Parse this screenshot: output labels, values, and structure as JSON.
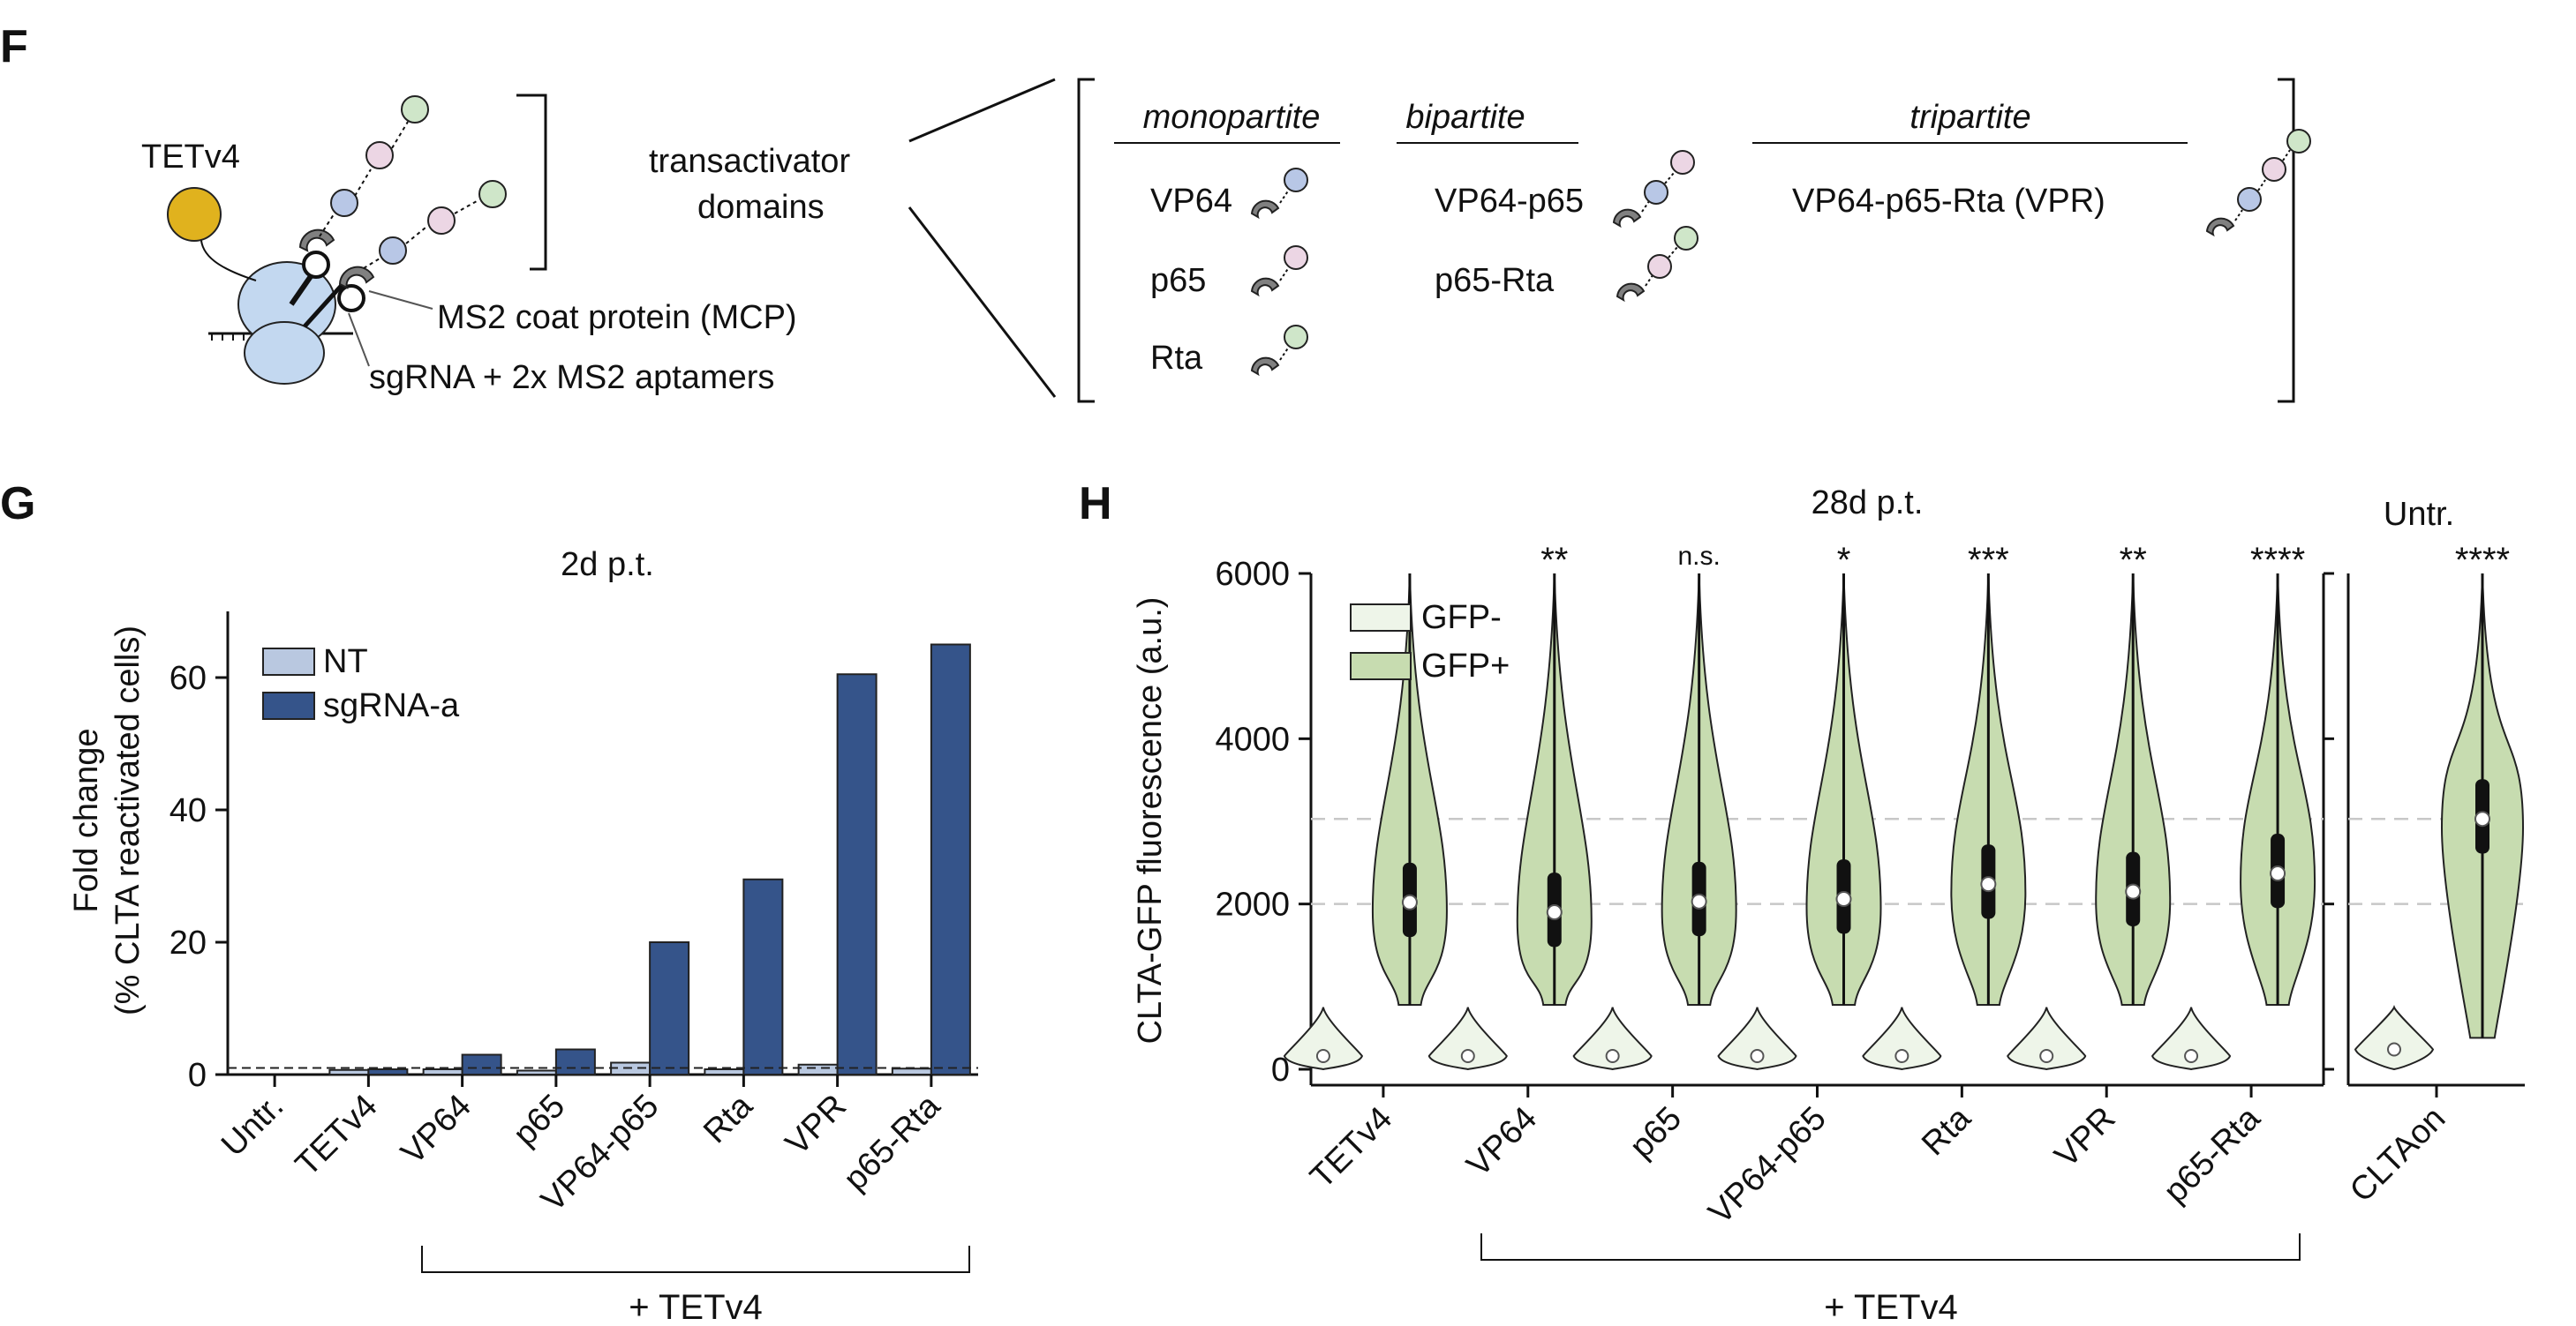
{
  "panelF": {
    "label": "F",
    "tetv4_label": "TETv4",
    "mcp_label": "MS2 coat protein (MCP)",
    "sgrna_label": "sgRNA + 2x MS2 aptamers",
    "transactivator_line1": "transactivator",
    "transactivator_line2": "domains",
    "groups": {
      "mono": {
        "title": "monopartite",
        "items": [
          "VP64",
          "p65",
          "Rta"
        ]
      },
      "bi": {
        "title": "bipartite",
        "items": [
          "VP64-p65",
          "p65-Rta"
        ]
      },
      "tri": {
        "title": "tripartite",
        "items": [
          "VP64-p65-Rta (VPR)"
        ]
      }
    },
    "colors": {
      "vp64": "#b8c7e6",
      "p65": "#ecd6e4",
      "rta": "#cfe6c9",
      "tetv4": "#e0b21e",
      "dcas9": "#c3d8f0",
      "mcp": "#808080"
    }
  },
  "panelG": {
    "label": "G",
    "title": "2d p.t.",
    "ylabel_line1": "Fold change",
    "ylabel_line2": "(% CLTA reactivated cells)",
    "bracket_label": "+ TETv4",
    "legend": [
      "NT",
      "sgRNA-a"
    ],
    "colors": {
      "nt": "#b9c8e0",
      "sgrna": "#35548a"
    }
  },
  "panelH": {
    "label": "H",
    "title": "28d p.t.",
    "untr_title": "Untr.",
    "ylabel": "CLTA-GFP fluorescence (a.u.)",
    "bracket_label": "+ TETv4",
    "legend": [
      "GFP-",
      "GFP+"
    ],
    "colors": {
      "gfp_neg": "#eef5e9",
      "gfp_pos": "#c7dcb0"
    }
  },
  "chart_data": [
    {
      "type": "bar",
      "title": "2d p.t.",
      "ylabel": "Fold change (% CLTA reactivated cells)",
      "categories": [
        "Untr.",
        "TETv4",
        "VP64",
        "p65",
        "VP64-p65",
        "Rta",
        "VPR",
        "p65-Rta"
      ],
      "series": [
        {
          "name": "NT",
          "values": [
            0,
            0.7,
            0.8,
            0.6,
            1.8,
            0.8,
            1.5,
            0.9
          ]
        },
        {
          "name": "sgRNA-a",
          "values": [
            0,
            0.8,
            3.0,
            3.8,
            20.0,
            29.5,
            60.5,
            65.0
          ]
        }
      ],
      "yticks": [
        0,
        20,
        40,
        60
      ],
      "ylim": [
        0,
        70
      ],
      "reference_line": 1,
      "legend": "top-left"
    },
    {
      "type": "violin",
      "title": "28d p.t.",
      "ylabel": "CLTA-GFP fluorescence (a.u.)",
      "categories": [
        "TETv4",
        "VP64",
        "p65",
        "VP64-p65",
        "Rta",
        "VPR",
        "p65-Rta"
      ],
      "series": [
        {
          "name": "GFP-",
          "medians": [
            160,
            160,
            160,
            160,
            160,
            160,
            160
          ]
        },
        {
          "name": "GFP+",
          "medians": [
            2020,
            1900,
            2030,
            2060,
            2240,
            2150,
            2370
          ]
        }
      ],
      "significance": [
        "",
        "**",
        "n.s.",
        "*",
        "***",
        "**",
        "****"
      ],
      "yticks": [
        0,
        2000,
        4000,
        6000
      ],
      "ylim": [
        0,
        6000
      ],
      "reference_lines": [
        2000,
        3030
      ],
      "legend": "top-left"
    },
    {
      "type": "violin",
      "title": "Untr.",
      "categories": [
        "CLTAon"
      ],
      "series": [
        {
          "name": "GFP-",
          "medians": [
            240
          ]
        },
        {
          "name": "GFP+",
          "medians": [
            3030
          ]
        }
      ],
      "significance": [
        "****"
      ],
      "ylim": [
        0,
        6000
      ]
    }
  ]
}
